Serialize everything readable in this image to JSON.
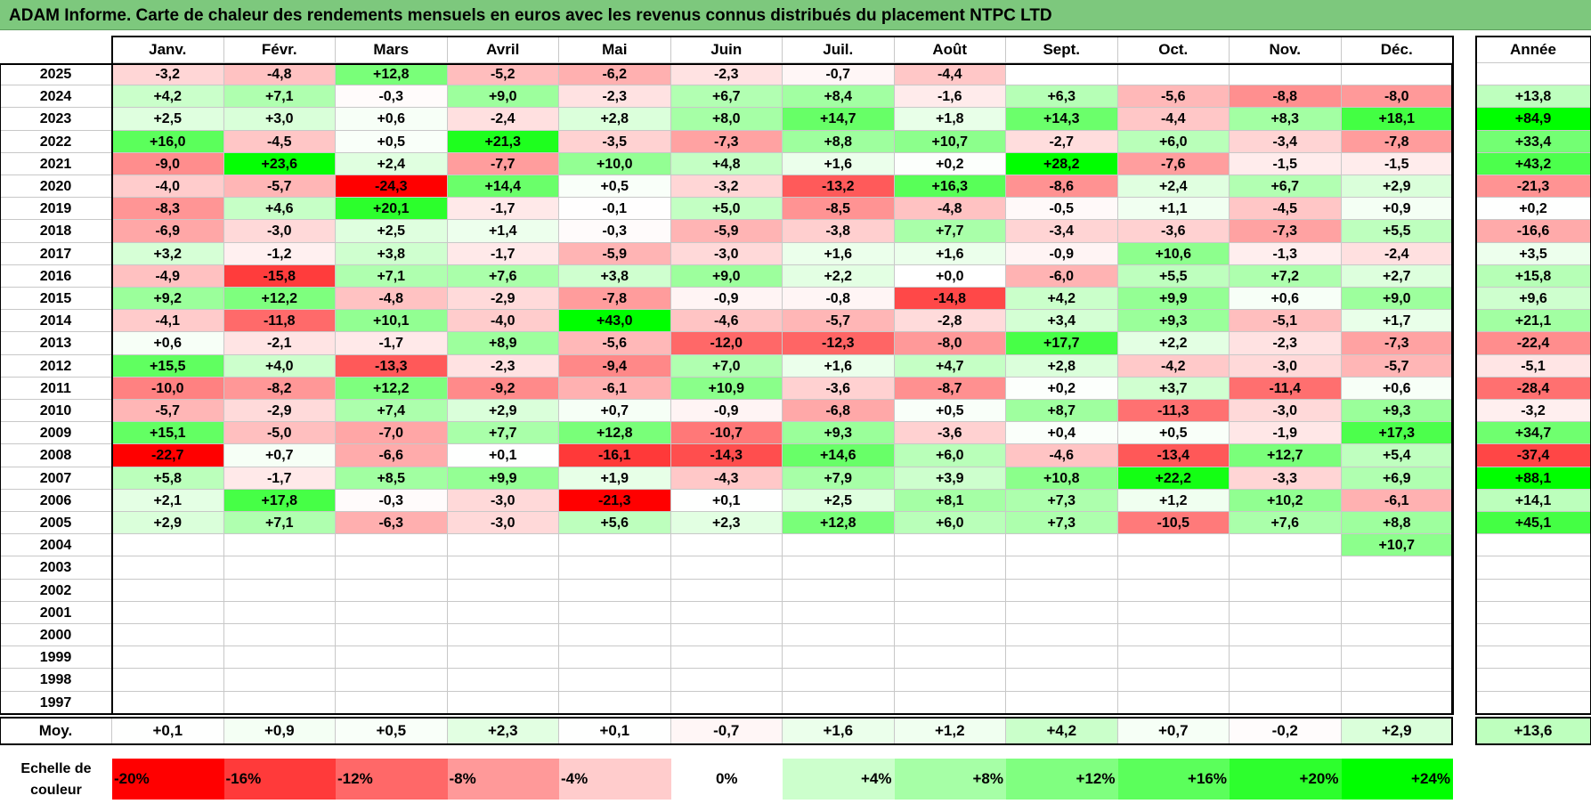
{
  "title": "ADAM Informe. Carte de chaleur des rendements mensuels en euros avec les revenus connus distribués du placement NTPC LTD",
  "chart_data": {
    "type": "heatmap",
    "columns": [
      "Janv.",
      "Févr.",
      "Mars",
      "Avril",
      "Mai",
      "Juin",
      "Juil.",
      "Août",
      "Sept.",
      "Oct.",
      "Nov.",
      "Déc."
    ],
    "year_column": "Année",
    "rows": [
      {
        "year": "2025",
        "values": [
          "-3,2",
          "-4,8",
          "+12,8",
          "-5,2",
          "-6,2",
          "-2,3",
          "-0,7",
          "-4,4",
          "",
          "",
          "",
          ""
        ],
        "annual": ""
      },
      {
        "year": "2024",
        "values": [
          "+4,2",
          "+7,1",
          "-0,3",
          "+9,0",
          "-2,3",
          "+6,7",
          "+8,4",
          "-1,6",
          "+6,3",
          "-5,6",
          "-8,8",
          "-8,0"
        ],
        "annual": "+13,8"
      },
      {
        "year": "2023",
        "values": [
          "+2,5",
          "+3,0",
          "+0,6",
          "-2,4",
          "+2,8",
          "+8,0",
          "+14,7",
          "+1,8",
          "+14,3",
          "-4,4",
          "+8,3",
          "+18,1"
        ],
        "annual": "+84,9"
      },
      {
        "year": "2022",
        "values": [
          "+16,0",
          "-4,5",
          "+0,5",
          "+21,3",
          "-3,5",
          "-7,3",
          "+8,8",
          "+10,7",
          "-2,7",
          "+6,0",
          "-3,4",
          "-7,8"
        ],
        "annual": "+33,4"
      },
      {
        "year": "2021",
        "values": [
          "-9,0",
          "+23,6",
          "+2,4",
          "-7,7",
          "+10,0",
          "+4,8",
          "+1,6",
          "+0,2",
          "+28,2",
          "-7,6",
          "-1,5",
          "-1,5"
        ],
        "annual": "+43,2"
      },
      {
        "year": "2020",
        "values": [
          "-4,0",
          "-5,7",
          "-24,3",
          "+14,4",
          "+0,5",
          "-3,2",
          "-13,2",
          "+16,3",
          "-8,6",
          "+2,4",
          "+6,7",
          "+2,9"
        ],
        "annual": "-21,3"
      },
      {
        "year": "2019",
        "values": [
          "-8,3",
          "+4,6",
          "+20,1",
          "-1,7",
          "-0,1",
          "+5,0",
          "-8,5",
          "-4,8",
          "-0,5",
          "+1,1",
          "-4,5",
          "+0,9"
        ],
        "annual": "+0,2"
      },
      {
        "year": "2018",
        "values": [
          "-6,9",
          "-3,0",
          "+2,5",
          "+1,4",
          "-0,3",
          "-5,9",
          "-3,8",
          "+7,7",
          "-3,4",
          "-3,6",
          "-7,3",
          "+5,5"
        ],
        "annual": "-16,6"
      },
      {
        "year": "2017",
        "values": [
          "+3,2",
          "-1,2",
          "+3,8",
          "-1,7",
          "-5,9",
          "-3,0",
          "+1,6",
          "+1,6",
          "-0,9",
          "+10,6",
          "-1,3",
          "-2,4"
        ],
        "annual": "+3,5"
      },
      {
        "year": "2016",
        "values": [
          "-4,9",
          "-15,8",
          "+7,1",
          "+7,6",
          "+3,8",
          "+9,0",
          "+2,2",
          "+0,0",
          "-6,0",
          "+5,5",
          "+7,2",
          "+2,7"
        ],
        "annual": "+15,8"
      },
      {
        "year": "2015",
        "values": [
          "+9,2",
          "+12,2",
          "-4,8",
          "-2,9",
          "-7,8",
          "-0,9",
          "-0,8",
          "-14,8",
          "+4,2",
          "+9,9",
          "+0,6",
          "+9,0"
        ],
        "annual": "+9,6"
      },
      {
        "year": "2014",
        "values": [
          "-4,1",
          "-11,8",
          "+10,1",
          "-4,0",
          "+43,0",
          "-4,6",
          "-5,7",
          "-2,8",
          "+3,4",
          "+9,3",
          "-5,1",
          "+1,7"
        ],
        "annual": "+21,1"
      },
      {
        "year": "2013",
        "values": [
          "+0,6",
          "-2,1",
          "-1,7",
          "+8,9",
          "-5,6",
          "-12,0",
          "-12,3",
          "-8,0",
          "+17,7",
          "+2,2",
          "-2,3",
          "-7,3"
        ],
        "annual": "-22,4"
      },
      {
        "year": "2012",
        "values": [
          "+15,5",
          "+4,0",
          "-13,3",
          "-2,3",
          "-9,4",
          "+7,0",
          "+1,6",
          "+4,7",
          "+2,8",
          "-4,2",
          "-3,0",
          "-5,7"
        ],
        "annual": "-5,1"
      },
      {
        "year": "2011",
        "values": [
          "-10,0",
          "-8,2",
          "+12,2",
          "-9,2",
          "-6,1",
          "+10,9",
          "-3,6",
          "-8,7",
          "+0,2",
          "+3,7",
          "-11,4",
          "+0,6"
        ],
        "annual": "-28,4"
      },
      {
        "year": "2010",
        "values": [
          "-5,7",
          "-2,9",
          "+7,4",
          "+2,9",
          "+0,7",
          "-0,9",
          "-6,8",
          "+0,5",
          "+8,7",
          "-11,3",
          "-3,0",
          "+9,3"
        ],
        "annual": "-3,2"
      },
      {
        "year": "2009",
        "values": [
          "+15,1",
          "-5,0",
          "-7,0",
          "+7,7",
          "+12,8",
          "-10,7",
          "+9,3",
          "-3,6",
          "+0,4",
          "+0,5",
          "-1,9",
          "+17,3"
        ],
        "annual": "+34,7"
      },
      {
        "year": "2008",
        "values": [
          "-22,7",
          "+0,7",
          "-6,6",
          "+0,1",
          "-16,1",
          "-14,3",
          "+14,6",
          "+6,0",
          "-4,6",
          "-13,4",
          "+12,7",
          "+5,4"
        ],
        "annual": "-37,4"
      },
      {
        "year": "2007",
        "values": [
          "+5,8",
          "-1,7",
          "+8,5",
          "+9,9",
          "+1,9",
          "-4,3",
          "+7,9",
          "+3,9",
          "+10,8",
          "+22,2",
          "-3,3",
          "+6,9"
        ],
        "annual": "+88,1"
      },
      {
        "year": "2006",
        "values": [
          "+2,1",
          "+17,8",
          "-0,3",
          "-3,0",
          "-21,3",
          "+0,1",
          "+2,5",
          "+8,1",
          "+7,3",
          "+1,2",
          "+10,2",
          "-6,1"
        ],
        "annual": "+14,1"
      },
      {
        "year": "2005",
        "values": [
          "+2,9",
          "+7,1",
          "-6,3",
          "-3,0",
          "+5,6",
          "+2,3",
          "+12,8",
          "+6,0",
          "+7,3",
          "-10,5",
          "+7,6",
          "+8,8"
        ],
        "annual": "+45,1"
      },
      {
        "year": "2004",
        "values": [
          "",
          "",
          "",
          "",
          "",
          "",
          "",
          "",
          "",
          "",
          "",
          "+10,7"
        ],
        "annual": ""
      },
      {
        "year": "2003",
        "values": [
          "",
          "",
          "",
          "",
          "",
          "",
          "",
          "",
          "",
          "",
          "",
          ""
        ],
        "annual": ""
      },
      {
        "year": "2002",
        "values": [
          "",
          "",
          "",
          "",
          "",
          "",
          "",
          "",
          "",
          "",
          "",
          ""
        ],
        "annual": ""
      },
      {
        "year": "2001",
        "values": [
          "",
          "",
          "",
          "",
          "",
          "",
          "",
          "",
          "",
          "",
          "",
          ""
        ],
        "annual": ""
      },
      {
        "year": "2000",
        "values": [
          "",
          "",
          "",
          "",
          "",
          "",
          "",
          "",
          "",
          "",
          "",
          ""
        ],
        "annual": ""
      },
      {
        "year": "1999",
        "values": [
          "",
          "",
          "",
          "",
          "",
          "",
          "",
          "",
          "",
          "",
          "",
          ""
        ],
        "annual": ""
      },
      {
        "year": "1998",
        "values": [
          "",
          "",
          "",
          "",
          "",
          "",
          "",
          "",
          "",
          "",
          "",
          ""
        ],
        "annual": ""
      },
      {
        "year": "1997",
        "values": [
          "",
          "",
          "",
          "",
          "",
          "",
          "",
          "",
          "",
          "",
          "",
          ""
        ],
        "annual": ""
      }
    ],
    "average": {
      "label": "Moy.",
      "values": [
        "+0,1",
        "+0,9",
        "+0,5",
        "+2,3",
        "+0,1",
        "-0,7",
        "+1,6",
        "+1,2",
        "+4,2",
        "+0,7",
        "-0,2",
        "+2,9"
      ],
      "annual": "+13,6"
    },
    "scale": {
      "label": "Echelle de couleur",
      "steps": [
        {
          "text": "-20%",
          "value": -20,
          "color": "#ff0000",
          "align": "left"
        },
        {
          "text": "-16%",
          "value": -16,
          "color": "#ff3a3a",
          "align": "left"
        },
        {
          "text": "-12%",
          "value": -12,
          "color": "#ff6868",
          "align": "left"
        },
        {
          "text": "-8%",
          "value": -8,
          "color": "#ff9999",
          "align": "left"
        },
        {
          "text": "-4%",
          "value": -4,
          "color": "#ffcccc",
          "align": "left"
        },
        {
          "text": "0%",
          "value": 0,
          "color": "#ffffff",
          "align": "center"
        },
        {
          "text": "+4%",
          "value": 4,
          "color": "#ccffcc",
          "align": "right"
        },
        {
          "text": "+8%",
          "value": 8,
          "color": "#a6ffa6",
          "align": "right"
        },
        {
          "text": "+12%",
          "value": 12,
          "color": "#80ff80",
          "align": "right"
        },
        {
          "text": "+16%",
          "value": 16,
          "color": "#5bff5b",
          "align": "right"
        },
        {
          "text": "+20%",
          "value": 20,
          "color": "#2dff2d",
          "align": "right"
        },
        {
          "text": "+24%",
          "value": 24,
          "color": "#00ff00",
          "align": "right"
        }
      ]
    },
    "annual_scale_max": 60
  }
}
